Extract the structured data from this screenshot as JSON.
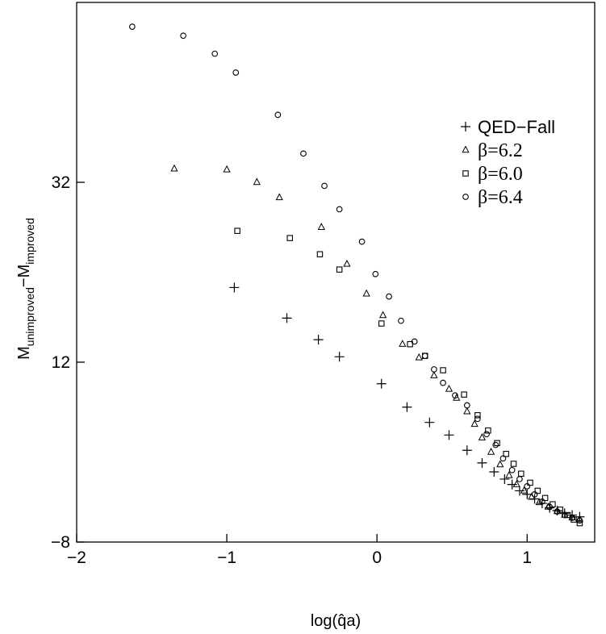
{
  "chart_data": {
    "type": "scatter",
    "title": "",
    "xlabel": "log(q̂a)",
    "ylabel": {
      "main1": "M",
      "sub1": "unimproved",
      "dash": "−",
      "main2": "M",
      "sub2": "improved"
    },
    "xlim": [
      -2,
      1.45
    ],
    "ylim": [
      -8,
      52
    ],
    "xticks": [
      -2,
      -1,
      0,
      1
    ],
    "xtick_labels": [
      "−2",
      "−1",
      "0",
      "1"
    ],
    "yticks": [
      -8,
      12,
      32
    ],
    "ytick_labels": [
      "−8",
      "12",
      "32"
    ],
    "grid": false,
    "legend_position": "top-right",
    "series": [
      {
        "name": "QED−Fall",
        "marker": "plus",
        "points": [
          [
            -0.95,
            20.3
          ],
          [
            -0.6,
            16.9
          ],
          [
            -0.39,
            14.5
          ],
          [
            -0.25,
            12.6
          ],
          [
            0.03,
            9.6
          ],
          [
            0.2,
            7.0
          ],
          [
            0.35,
            5.3
          ],
          [
            0.48,
            3.9
          ],
          [
            0.6,
            2.2
          ],
          [
            0.7,
            0.8
          ],
          [
            0.78,
            -0.2
          ],
          [
            0.85,
            -1.0
          ],
          [
            0.9,
            -1.6
          ],
          [
            0.95,
            -2.3
          ],
          [
            1.0,
            -2.7
          ],
          [
            1.05,
            -3.2
          ],
          [
            1.1,
            -3.7
          ],
          [
            1.15,
            -4.2
          ],
          [
            1.2,
            -4.5
          ],
          [
            1.25,
            -4.8
          ],
          [
            1.3,
            -5.0
          ],
          [
            1.35,
            -5.2
          ]
        ]
      },
      {
        "name": "β=6.2",
        "marker": "triangle",
        "points": [
          [
            -1.35,
            33.5
          ],
          [
            -1.0,
            33.4
          ],
          [
            -0.8,
            32.0
          ],
          [
            -0.65,
            30.3
          ],
          [
            -0.37,
            27.0
          ],
          [
            -0.2,
            22.9
          ],
          [
            -0.07,
            19.6
          ],
          [
            0.04,
            17.2
          ],
          [
            0.17,
            14.0
          ],
          [
            0.28,
            12.5
          ],
          [
            0.38,
            10.5
          ],
          [
            0.48,
            9.0
          ],
          [
            0.53,
            8.0
          ],
          [
            0.6,
            6.5
          ],
          [
            0.65,
            5.1
          ],
          [
            0.7,
            3.6
          ],
          [
            0.76,
            2.0
          ],
          [
            0.82,
            0.6
          ],
          [
            0.88,
            -0.6
          ],
          [
            0.93,
            -1.6
          ],
          [
            0.98,
            -2.3
          ],
          [
            1.03,
            -3.0
          ],
          [
            1.08,
            -3.6
          ],
          [
            1.14,
            -4.1
          ],
          [
            1.2,
            -4.6
          ],
          [
            1.25,
            -5.0
          ],
          [
            1.3,
            -5.3
          ],
          [
            1.35,
            -5.5
          ]
        ]
      },
      {
        "name": "β=6.0",
        "marker": "square",
        "points": [
          [
            -0.93,
            26.6
          ],
          [
            -0.58,
            25.8
          ],
          [
            -0.38,
            24.0
          ],
          [
            -0.25,
            22.3
          ],
          [
            0.03,
            16.3
          ],
          [
            0.22,
            14.0
          ],
          [
            0.32,
            12.7
          ],
          [
            0.44,
            11.1
          ],
          [
            0.58,
            8.4
          ],
          [
            0.67,
            6.1
          ],
          [
            0.74,
            4.4
          ],
          [
            0.8,
            3.0
          ],
          [
            0.86,
            1.8
          ],
          [
            0.91,
            0.7
          ],
          [
            0.96,
            -0.4
          ],
          [
            1.02,
            -1.4
          ],
          [
            1.07,
            -2.3
          ],
          [
            1.12,
            -3.1
          ],
          [
            1.17,
            -3.8
          ],
          [
            1.22,
            -4.4
          ],
          [
            1.27,
            -5.0
          ],
          [
            1.31,
            -5.5
          ],
          [
            1.35,
            -5.9
          ]
        ]
      },
      {
        "name": "β=6.4",
        "marker": "circle",
        "points": [
          [
            -1.63,
            49.3
          ],
          [
            -1.29,
            48.3
          ],
          [
            -1.08,
            46.3
          ],
          [
            -0.94,
            44.2
          ],
          [
            -0.66,
            39.5
          ],
          [
            -0.49,
            35.2
          ],
          [
            -0.35,
            31.6
          ],
          [
            -0.25,
            29.0
          ],
          [
            -0.1,
            25.4
          ],
          [
            -0.01,
            21.8
          ],
          [
            0.08,
            19.3
          ],
          [
            0.16,
            16.6
          ],
          [
            0.25,
            14.3
          ],
          [
            0.32,
            12.7
          ],
          [
            0.38,
            11.2
          ],
          [
            0.44,
            9.7
          ],
          [
            0.52,
            8.3
          ],
          [
            0.6,
            7.2
          ],
          [
            0.67,
            5.7
          ],
          [
            0.73,
            4.0
          ],
          [
            0.79,
            2.8
          ],
          [
            0.84,
            1.3
          ],
          [
            0.9,
            0.0
          ],
          [
            0.95,
            -1.0
          ],
          [
            1.0,
            -1.8
          ],
          [
            1.05,
            -2.7
          ],
          [
            1.1,
            -3.5
          ],
          [
            1.15,
            -4.1
          ],
          [
            1.2,
            -4.6
          ],
          [
            1.25,
            -5.0
          ],
          [
            1.3,
            -5.3
          ],
          [
            1.35,
            -5.6
          ]
        ]
      }
    ]
  }
}
